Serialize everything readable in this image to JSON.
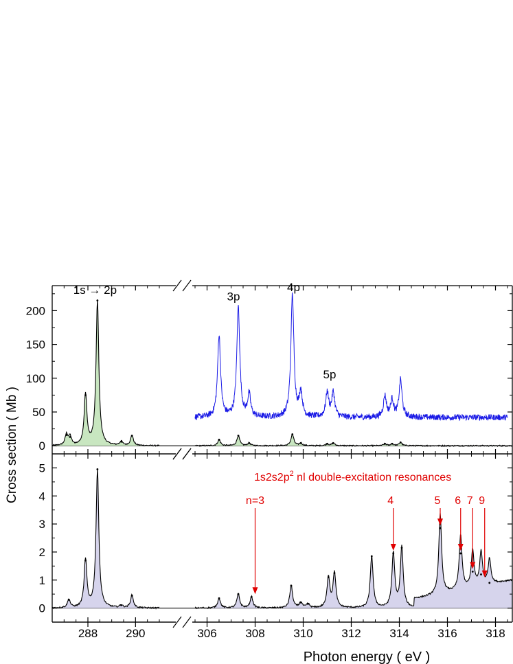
{
  "chart_data": {
    "type": "line",
    "ylabel": "Cross section  ( Mb )",
    "xlabel": "Photon energy  ( eV )",
    "x_segments": [
      {
        "xlim": [
          286.5,
          291
        ],
        "ticks": [
          288,
          290
        ]
      },
      {
        "xlim": [
          305.5,
          318.7
        ],
        "ticks": [
          306,
          308,
          310,
          312,
          314,
          316,
          318
        ]
      }
    ],
    "panels": [
      {
        "name": "top",
        "ylim": [
          -12,
          237
        ],
        "yticks": [
          0,
          50,
          100,
          150,
          200
        ],
        "fill": "#c8e6c0",
        "series": [
          {
            "style": "black-filled",
            "baseline": 0,
            "points": [
              [
                287.1,
                16
              ],
              [
                287.25,
                13
              ],
              [
                287.9,
                75
              ],
              [
                288.4,
                215
              ],
              [
                289.4,
                6
              ],
              [
                289.85,
                15
              ],
              [
                306.5,
                9
              ],
              [
                307.3,
                15
              ],
              [
                307.75,
                4
              ],
              [
                309.55,
                17
              ],
              [
                309.9,
                4
              ],
              [
                311.0,
                3
              ],
              [
                311.25,
                4
              ],
              [
                313.4,
                3
              ],
              [
                313.7,
                3
              ],
              [
                314.05,
                5
              ]
            ]
          },
          {
            "style": "blue-dashed",
            "baseline": 42,
            "points": [
              [
                306.5,
                163
              ],
              [
                307.3,
                205
              ],
              [
                307.75,
                75
              ],
              [
                309.55,
                223
              ],
              [
                309.9,
                78
              ],
              [
                311.0,
                78
              ],
              [
                311.25,
                78
              ],
              [
                313.4,
                73
              ],
              [
                313.7,
                67
              ],
              [
                314.05,
                97
              ]
            ]
          }
        ],
        "annotations": [
          {
            "text": "1s → 2p",
            "x": 288.3,
            "y": 225
          },
          {
            "text": "3p",
            "x": 307.1,
            "y": 215
          },
          {
            "text": "4p",
            "x": 309.6,
            "y": 229
          },
          {
            "text": "5p",
            "x": 311.1,
            "y": 100
          }
        ]
      },
      {
        "name": "bottom",
        "ylim": [
          -0.5,
          5.5
        ],
        "yticks": [
          0,
          1,
          2,
          3,
          4,
          5
        ],
        "fill": "#d6d4ec",
        "series": [
          {
            "style": "black-filled",
            "points": [
              [
                287.2,
                0.3
              ],
              [
                287.9,
                1.7
              ],
              [
                288.4,
                4.95
              ],
              [
                289.4,
                0.1
              ],
              [
                289.85,
                0.45
              ],
              [
                306.5,
                0.35
              ],
              [
                307.3,
                0.5
              ],
              [
                307.85,
                0.4
              ],
              [
                309.5,
                0.8
              ],
              [
                309.9,
                0.2
              ],
              [
                310.2,
                0.15
              ],
              [
                311.05,
                1.1
              ],
              [
                311.3,
                1.25
              ],
              [
                312.85,
                1.85
              ],
              [
                313.75,
                1.95
              ],
              [
                314.1,
                2.15
              ],
              [
                315.7,
                2.85
              ],
              [
                316.55,
                1.95
              ],
              [
                317.05,
                1.3
              ],
              [
                317.4,
                1.2
              ],
              [
                317.75,
                0.9
              ]
            ],
            "background_ramp": [
              [
                314.6,
                0.3
              ],
              [
                318.7,
                1.0
              ]
            ]
          }
        ],
        "title": "1s2s2p",
        "title_sup": "2",
        "title_rest": " nl double-excitation resonances",
        "markers": [
          {
            "label": "n=3",
            "x": 308.0,
            "y": 0.4
          },
          {
            "label": "4",
            "x": 313.75,
            "y": 1.95
          },
          {
            "label": "5",
            "x": 315.7,
            "y": 2.85
          },
          {
            "label": "6",
            "x": 316.55,
            "y": 1.95
          },
          {
            "label": "7",
            "x": 317.05,
            "y": 1.3
          },
          {
            "label": "9",
            "x": 317.55,
            "y": 1.0
          }
        ]
      }
    ]
  }
}
